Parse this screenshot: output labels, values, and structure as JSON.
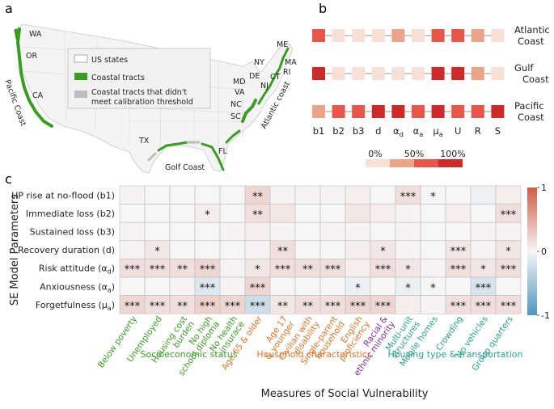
{
  "panels": {
    "a": "a",
    "b": "b",
    "c": "c"
  },
  "map": {
    "legend": [
      "US states",
      "Coastal tracts",
      "Coastal tracts that didn't meet calibration threshold"
    ],
    "legend_colors": [
      "#ffffff",
      "#3a9d23",
      "#bdbdbd"
    ],
    "state_labels": [
      "WA",
      "OR",
      "CA",
      "TX",
      "FL",
      "SC",
      "NC",
      "VA",
      "MD",
      "DE",
      "NJ",
      "CT",
      "NY",
      "RI",
      "MA",
      "ME"
    ],
    "region_labels": [
      "Pacific Coast",
      "Golf Coast",
      "Atlantic coast"
    ]
  },
  "chart_data": [
    {
      "type": "heatmap",
      "id": "b",
      "rows": [
        "Atlantic Coast",
        "Gulf Coast",
        "Pacific Coast"
      ],
      "columns": [
        "b1",
        "b2",
        "b3",
        "d",
        "α_d",
        "α_a",
        "μ_a",
        "U",
        "R",
        "S"
      ],
      "values": [
        [
          75,
          25,
          25,
          25,
          50,
          25,
          75,
          75,
          50,
          25
        ],
        [
          100,
          25,
          25,
          25,
          25,
          25,
          100,
          100,
          50,
          25
        ],
        [
          50,
          75,
          75,
          100,
          100,
          75,
          100,
          75,
          75,
          100
        ]
      ],
      "legend": {
        "ticks": [
          "0%",
          "50%",
          "100%"
        ],
        "colors": [
          "#f7e1d6",
          "#eaa488",
          "#e6574a",
          "#cf2a2a"
        ]
      }
    },
    {
      "type": "heatmap",
      "id": "c",
      "ylabel": "SE Model Parameters",
      "xlabel": "Measures of Social Vulnerability",
      "rows": [
        "HP rise at no-flood (b1)",
        "Immediate loss (b2)",
        "Sustained loss (b3)",
        "Recovery duration (d)",
        "Risk attitude (α_d)",
        "Anxiousness (α_a)",
        "Forgetfulness (μ_a)"
      ],
      "columns": [
        "Below poverty",
        "Unemployed",
        "Housing cost burden",
        "No high school diploma",
        "No health insurace",
        "Age 65 & older",
        "Age 17 & younger",
        "Civilian with disability",
        "Single-parent household",
        "English proficiency",
        "Racial & ethnic minority",
        "Multi-unit structures",
        "Mobile homes",
        "Crowding",
        "No vehicles",
        "Group quarters"
      ],
      "column_groups": [
        {
          "label": "Socioeconomic status",
          "color": "#3a9d23",
          "columns": [
            0,
            1,
            2,
            3,
            4
          ]
        },
        {
          "label": "Household characteristics",
          "color": "#d9752b",
          "columns": [
            5,
            6,
            7,
            8,
            9
          ]
        },
        {
          "label": "Racial & ethnic minority",
          "color": "#7b2f9e",
          "columns": [
            10
          ]
        },
        {
          "label": "Housing type & transportation",
          "color": "#2aa389",
          "columns": [
            11,
            12,
            13,
            14,
            15
          ]
        }
      ],
      "values": [
        [
          0.02,
          0.0,
          0.0,
          0.0,
          0.0,
          0.2,
          0.02,
          0.02,
          0.02,
          0.05,
          0.0,
          0.15,
          0.0,
          0.0,
          -0.05,
          0.05
        ],
        [
          0.0,
          0.0,
          0.0,
          0.05,
          0.0,
          0.15,
          0.1,
          0.0,
          0.0,
          0.1,
          0.05,
          0.02,
          0.0,
          0.05,
          0.0,
          0.15
        ],
        [
          0.02,
          0.0,
          0.0,
          0.0,
          0.02,
          0.05,
          0.02,
          0.0,
          0.02,
          0.02,
          0.0,
          0.02,
          0.0,
          0.0,
          0.02,
          0.02
        ],
        [
          0.02,
          0.1,
          0.0,
          0.0,
          0.0,
          0.02,
          0.15,
          0.0,
          0.0,
          0.05,
          0.1,
          0.02,
          0.0,
          0.1,
          0.02,
          0.1
        ],
        [
          0.15,
          0.15,
          0.15,
          0.2,
          0.02,
          0.1,
          0.15,
          0.15,
          0.15,
          0.05,
          0.15,
          0.1,
          0.02,
          0.15,
          0.1,
          0.15
        ],
        [
          0.0,
          0.0,
          0.02,
          -0.15,
          0.02,
          0.2,
          0.0,
          0.0,
          0.0,
          -0.05,
          0.0,
          -0.05,
          0.0,
          0.0,
          -0.2,
          0.0
        ],
        [
          0.2,
          0.15,
          0.15,
          0.25,
          0.2,
          -0.25,
          0.1,
          0.15,
          0.15,
          0.2,
          0.2,
          0.05,
          0.02,
          0.15,
          0.15,
          0.15
        ]
      ],
      "significance": [
        [
          "",
          "",
          "",
          "",
          "",
          "**",
          "",
          "",
          "",
          "",
          "",
          "***",
          "*",
          "",
          "",
          ""
        ],
        [
          "",
          "",
          "",
          "*",
          "",
          "**",
          "",
          "",
          "",
          "",
          "",
          "",
          "",
          "",
          "",
          "***"
        ],
        [
          "",
          "",
          "",
          "",
          "",
          "",
          "",
          "",
          "",
          "",
          "",
          "",
          "",
          "",
          "",
          ""
        ],
        [
          "",
          "*",
          "",
          "",
          "",
          "",
          "**",
          "",
          "",
          "",
          "*",
          "",
          "",
          "***",
          "",
          "*"
        ],
        [
          "***",
          "***",
          "**",
          "***",
          "",
          "*",
          "***",
          "**",
          "***",
          "",
          "***",
          "*",
          "",
          "***",
          "*",
          "***"
        ],
        [
          "",
          "",
          "",
          "***",
          "",
          "***",
          "",
          "",
          "",
          "*",
          "",
          "*",
          "*",
          "",
          "***",
          ""
        ],
        [
          "***",
          "***",
          "**",
          "***",
          "***",
          "***",
          "**",
          "**",
          "***",
          "***",
          "***",
          "",
          "",
          "***",
          "***",
          "***"
        ]
      ],
      "colorbar": {
        "ticks": [
          "1",
          "0",
          "-1"
        ],
        "range": [
          -1,
          1
        ]
      }
    }
  ]
}
